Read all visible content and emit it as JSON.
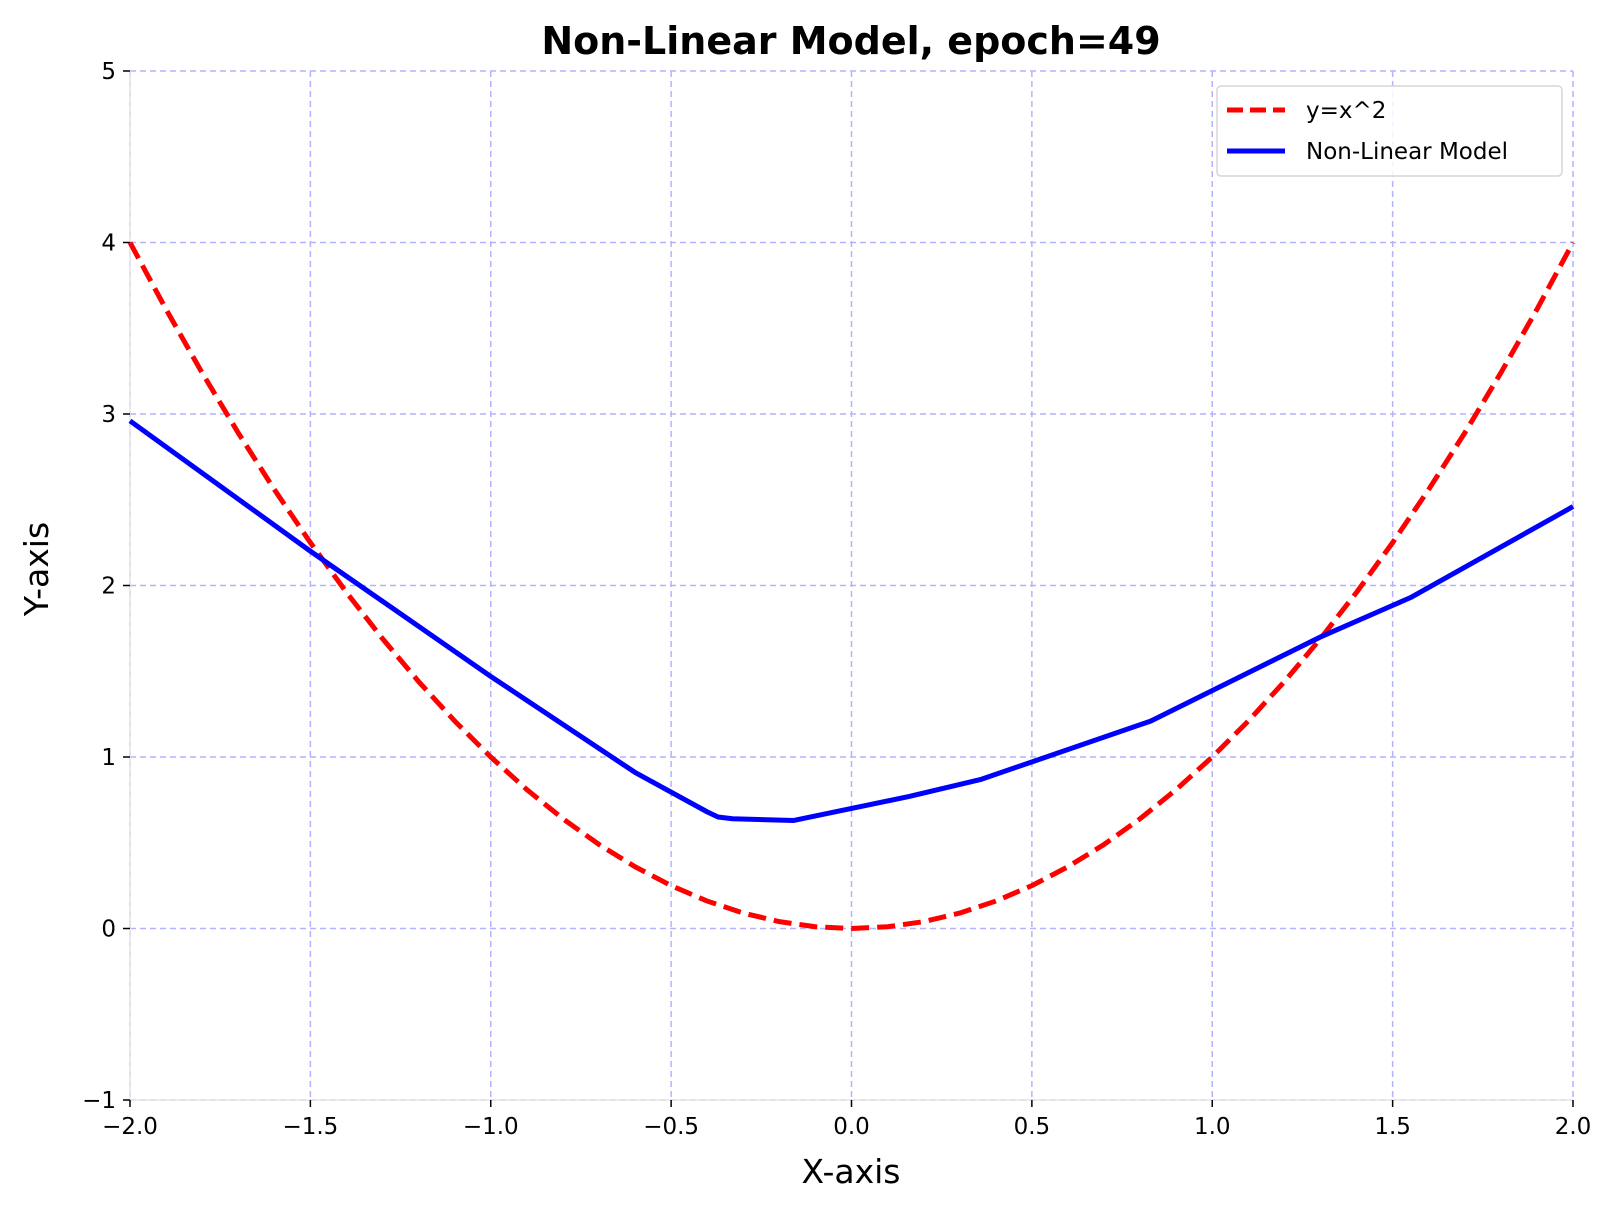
{
  "chart_data": {
    "type": "line",
    "title": "Non-Linear Model, epoch=49",
    "xlabel": "X-axis",
    "ylabel": "Y-axis",
    "xlim": [
      -2.0,
      2.0
    ],
    "ylim": [
      -1,
      5
    ],
    "xticks": [
      -2.0,
      -1.5,
      -1.0,
      -0.5,
      0.0,
      0.5,
      1.0,
      1.5,
      2.0
    ],
    "xtick_labels": [
      "−2.0",
      "−1.5",
      "−1.0",
      "−0.5",
      "0.0",
      "0.5",
      "1.0",
      "1.5",
      "2.0"
    ],
    "yticks": [
      -1,
      0,
      1,
      2,
      3,
      4,
      5
    ],
    "ytick_labels": [
      "−1",
      "0",
      "1",
      "2",
      "3",
      "4",
      "5"
    ],
    "grid": true,
    "grid_color": "#b3b3ff",
    "legend_position": "top-right",
    "series": [
      {
        "name": "y=x^2",
        "color": "#ff0000",
        "style": "dashed",
        "function": "x^2",
        "x": [
          -2.0,
          -1.9,
          -1.8,
          -1.7,
          -1.6,
          -1.5,
          -1.4,
          -1.3,
          -1.2,
          -1.1,
          -1.0,
          -0.9,
          -0.8,
          -0.7,
          -0.6,
          -0.5,
          -0.4,
          -0.3,
          -0.2,
          -0.1,
          0.0,
          0.1,
          0.2,
          0.3,
          0.4,
          0.5,
          0.6,
          0.7,
          0.8,
          0.9,
          1.0,
          1.1,
          1.2,
          1.3,
          1.4,
          1.5,
          1.6,
          1.7,
          1.8,
          1.9,
          2.0
        ],
        "y": [
          4.0,
          3.61,
          3.24,
          2.89,
          2.56,
          2.25,
          1.96,
          1.69,
          1.44,
          1.21,
          1.0,
          0.81,
          0.64,
          0.49,
          0.36,
          0.25,
          0.16,
          0.09,
          0.04,
          0.01,
          0.0,
          0.01,
          0.04,
          0.09,
          0.16,
          0.25,
          0.36,
          0.49,
          0.64,
          0.81,
          1.0,
          1.21,
          1.44,
          1.69,
          1.96,
          2.25,
          2.56,
          2.89,
          3.24,
          3.61,
          4.0
        ]
      },
      {
        "name": "Non-Linear Model",
        "color": "#0000ff",
        "style": "solid",
        "x": [
          -2.0,
          -1.5,
          -1.0,
          -0.6,
          -0.4,
          -0.37,
          -0.33,
          -0.16,
          0.0,
          0.16,
          0.36,
          0.83,
          1.3,
          1.55,
          2.0
        ],
        "y": [
          2.96,
          2.2,
          1.47,
          0.91,
          0.68,
          0.65,
          0.64,
          0.63,
          0.7,
          0.77,
          0.87,
          1.21,
          1.7,
          1.93,
          2.46
        ]
      }
    ]
  }
}
